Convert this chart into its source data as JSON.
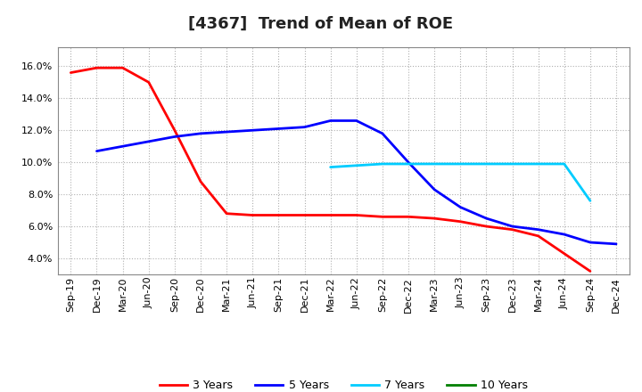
{
  "title": "[4367]  Trend of Mean of ROE",
  "ylim": [
    0.03,
    0.172
  ],
  "yticks": [
    0.04,
    0.06,
    0.08,
    0.1,
    0.12,
    0.14,
    0.16
  ],
  "background_color": "#ffffff",
  "plot_background": "#ffffff",
  "grid_color": "#b0b0b0",
  "x_labels": [
    "Sep-19",
    "Dec-19",
    "Mar-20",
    "Jun-20",
    "Sep-20",
    "Dec-20",
    "Mar-21",
    "Jun-21",
    "Sep-21",
    "Dec-21",
    "Mar-22",
    "Jun-22",
    "Sep-22",
    "Dec-22",
    "Mar-23",
    "Jun-23",
    "Sep-23",
    "Dec-23",
    "Mar-24",
    "Jun-24",
    "Sep-24",
    "Dec-24"
  ],
  "series": [
    {
      "name": "3 Years",
      "color": "#ff0000",
      "linewidth": 2.0,
      "xs": [
        0,
        1,
        2,
        3,
        4,
        5,
        6,
        7,
        8,
        9,
        10,
        11,
        12,
        13,
        14,
        15,
        16,
        17,
        18,
        19,
        20
      ],
      "ys": [
        0.156,
        0.159,
        0.159,
        0.15,
        0.12,
        0.088,
        0.068,
        0.067,
        0.067,
        0.067,
        0.067,
        0.067,
        0.066,
        0.066,
        0.065,
        0.063,
        0.06,
        0.058,
        0.054,
        0.043,
        0.032
      ]
    },
    {
      "name": "5 Years",
      "color": "#0000ff",
      "linewidth": 2.0,
      "xs": [
        1,
        2,
        3,
        4,
        5,
        6,
        7,
        8,
        9,
        10,
        11,
        12,
        13,
        14,
        15,
        16,
        17,
        18,
        19,
        20,
        21
      ],
      "ys": [
        0.107,
        0.11,
        0.113,
        0.116,
        0.118,
        0.119,
        0.12,
        0.121,
        0.122,
        0.126,
        0.126,
        0.118,
        0.1,
        0.083,
        0.072,
        0.065,
        0.06,
        0.058,
        0.055,
        0.05,
        0.049
      ]
    },
    {
      "name": "7 Years",
      "color": "#00ccff",
      "linewidth": 2.0,
      "xs": [
        10,
        11,
        12,
        13,
        14,
        15,
        16,
        17,
        18,
        19,
        20
      ],
      "ys": [
        0.097,
        0.098,
        0.099,
        0.099,
        0.099,
        0.099,
        0.099,
        0.099,
        0.099,
        0.099,
        0.076
      ]
    },
    {
      "name": "10 Years",
      "color": "#008000",
      "linewidth": 2.0,
      "xs": [],
      "ys": []
    }
  ],
  "legend_labels": [
    "3 Years",
    "5 Years",
    "7 Years",
    "10 Years"
  ],
  "legend_colors": [
    "#ff0000",
    "#0000ff",
    "#00ccff",
    "#008000"
  ],
  "title_fontsize": 13,
  "tick_fontsize": 8,
  "legend_fontsize": 9
}
